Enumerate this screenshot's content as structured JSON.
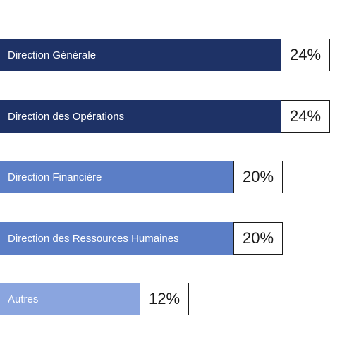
{
  "chart_data": {
    "type": "bar",
    "orientation": "horizontal",
    "categories": [
      "Direction Générale",
      "Direction des Opérations",
      "Direction Financière",
      "Direction des Ressources Humaines",
      "Autres"
    ],
    "values": [
      24,
      24,
      20,
      20,
      12
    ],
    "value_labels": [
      "24%",
      "24%",
      "20%",
      "20%",
      "12%"
    ],
    "unit": "%",
    "bar_colors": [
      "#1e3266",
      "#1e3266",
      "#5b7ec6",
      "#5b7ec6",
      "#8aa5df"
    ],
    "title": "",
    "xlabel": "",
    "ylabel": "",
    "grid": false,
    "legend": "none"
  }
}
